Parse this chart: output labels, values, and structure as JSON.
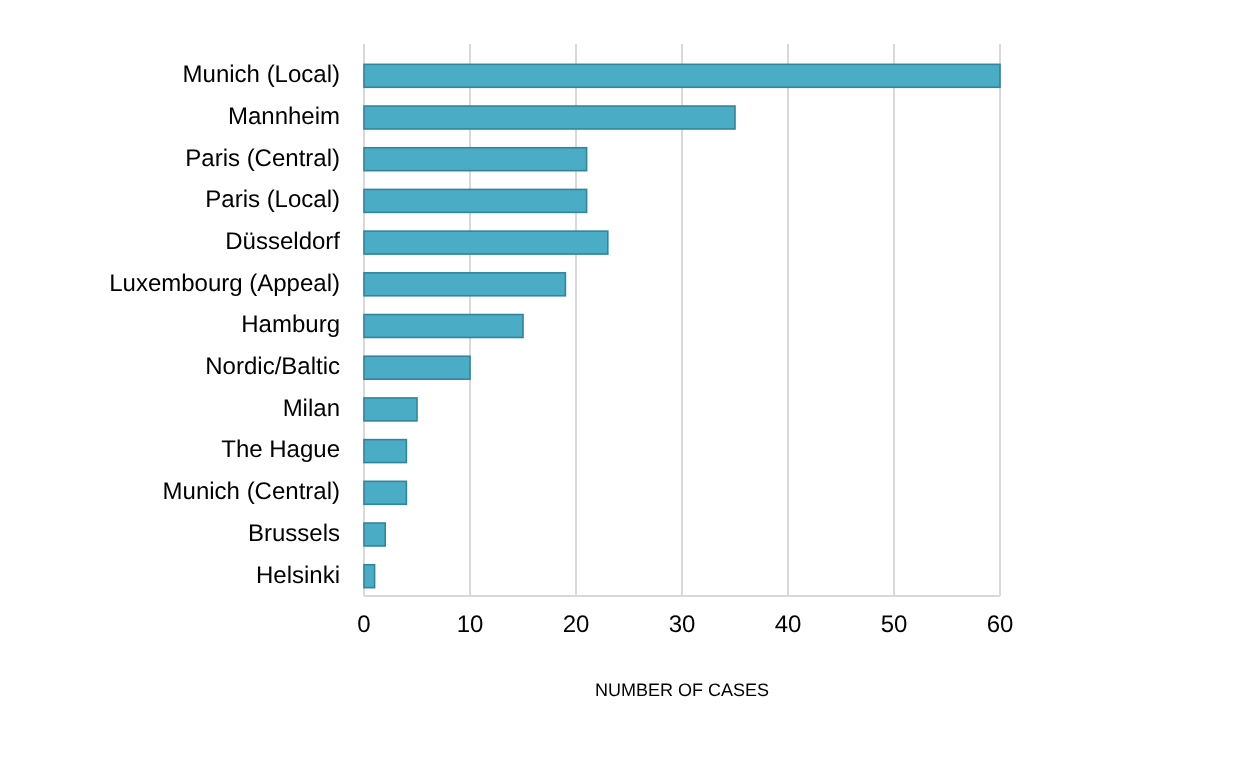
{
  "chart_data": {
    "type": "bar",
    "orientation": "horizontal",
    "xlabel": "NUMBER OF CASES",
    "categories": [
      "Munich (Local)",
      "Mannheim",
      "Paris (Central)",
      "Paris (Local)",
      "Düsseldorf",
      "Luxembourg (Appeal)",
      "Hamburg",
      "Nordic/Baltic",
      "Milan",
      "The Hague",
      "Munich (Central)",
      "Brussels",
      "Helsinki"
    ],
    "values": [
      60,
      35,
      21,
      21,
      23,
      19,
      15,
      10,
      5,
      4,
      4,
      2,
      1
    ],
    "color": "#4bacc6",
    "xlim": [
      0,
      60
    ],
    "xticks": [
      0,
      10,
      20,
      30,
      40,
      50,
      60
    ],
    "grid": "x"
  }
}
